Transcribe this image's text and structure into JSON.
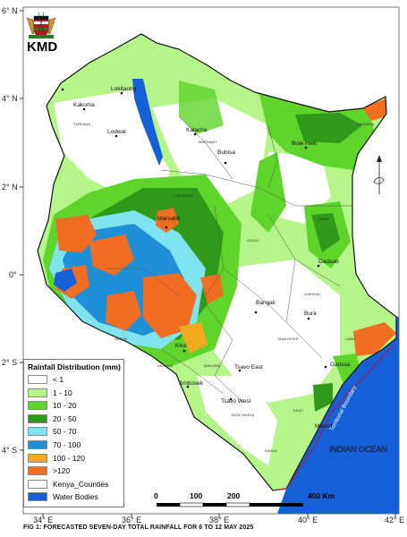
{
  "header": {
    "org_name": "KMD",
    "coat_of_arms_icon": "kenya-coat-of-arms-icon"
  },
  "axes": {
    "longitude_ticks": [
      "34° E",
      "36° E",
      "38° E",
      "40° E",
      "42° E"
    ],
    "latitude_ticks": [
      "6° N",
      "4° N",
      "2° N",
      "0°",
      "2° S",
      "4° S"
    ]
  },
  "places": {
    "towns": [
      "Kakuma",
      "Lokitaung",
      "Lodwar",
      "Kalacha",
      "Bubisa",
      "Bute Helu",
      "Marsabit",
      "Bangali",
      "Dadaab",
      "Bura",
      "Kitui",
      "Tsavo East",
      "Garissa",
      "Amboseli",
      "Tsavo West",
      "Malindi"
    ],
    "counties": [
      "TURKANA",
      "MARSABIT",
      "MANDERA",
      "WAJIR",
      "ISIOLO",
      "GARISSA",
      "TANA RIVER",
      "LAMU",
      "KILIFI",
      "KWALE",
      "TAITA TAVETA",
      "MAKUENI",
      "KAJIADO",
      "NAROK",
      "SAMBURU"
    ]
  },
  "annotations": {
    "ocean": "INDIAN OCEAN",
    "boundary": "Territorial Boundary"
  },
  "scale_bar": {
    "labels": [
      "0",
      "100",
      "200",
      "400 Km"
    ]
  },
  "north_arrow_icon": "north-arrow-icon",
  "legend": {
    "title": "Rainfall Distribution (mm)",
    "items": [
      {
        "label": "< 1",
        "color": "#ffffff"
      },
      {
        "label": "1 - 10",
        "color": "#b5f58a"
      },
      {
        "label": "10 - 20",
        "color": "#5fd42a"
      },
      {
        "label": "20 - 50",
        "color": "#2f9a1a"
      },
      {
        "label": "50 - 70",
        "color": "#7fe3f0"
      },
      {
        "label": "70 - 100",
        "color": "#1f8fd8"
      },
      {
        "label": "100 - 120",
        "color": "#f2a81f"
      },
      {
        "label": ">120",
        "color": "#f06d22"
      },
      {
        "label": "Kenya_Counties",
        "color": "#ffffff"
      },
      {
        "label": "Water Bodies",
        "color": "#1560d6"
      }
    ]
  },
  "caption": "FIG 1: FORECASTED SEVEN-DAY TOTAL RAINFALL FOR 6 TO 12 MAY 2025"
}
